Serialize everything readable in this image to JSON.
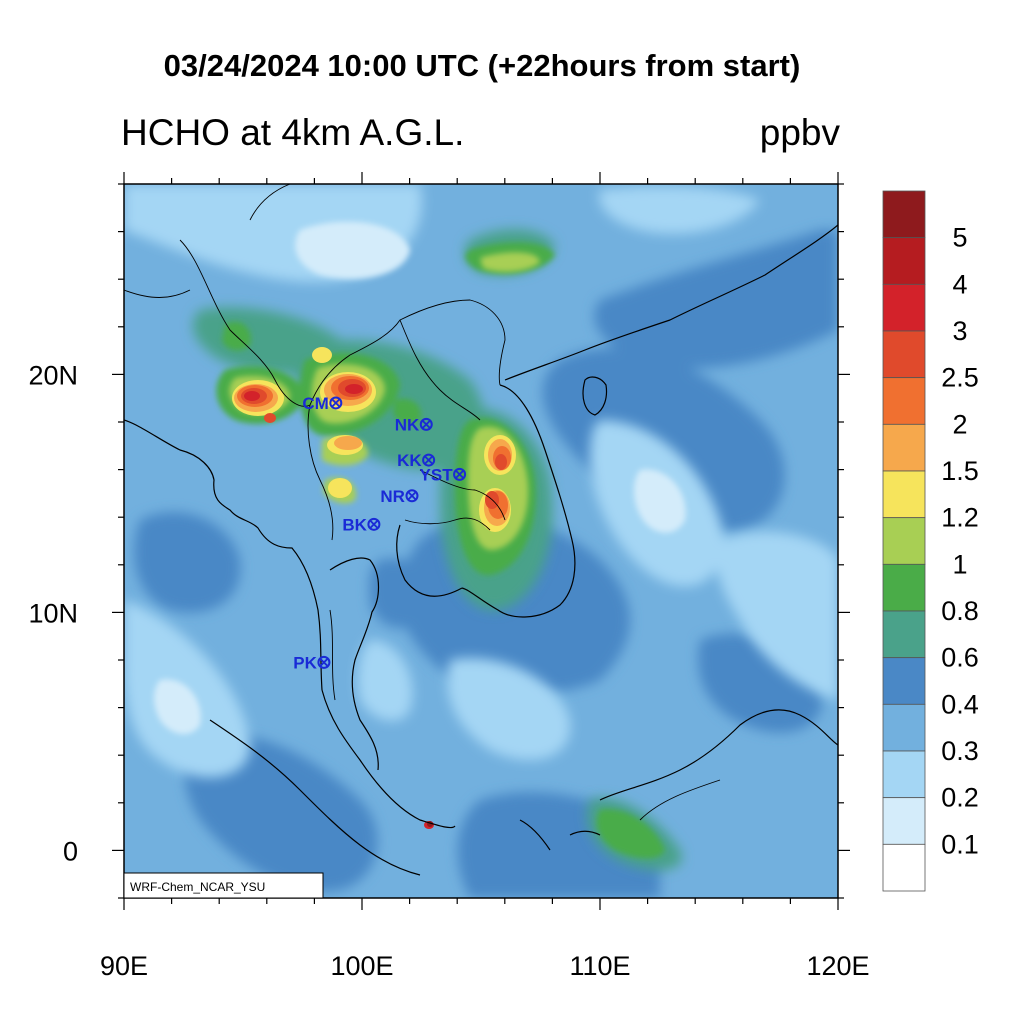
{
  "header": {
    "title": "03/24/2024 10:00 UTC (+22hours from start)",
    "left_label": "HCHO at 4km A.G.L.",
    "units": "ppbv"
  },
  "map": {
    "lon_range": [
      90,
      120
    ],
    "lat_range": [
      -2,
      28
    ],
    "x_ticks": [
      {
        "value": 90,
        "label": "90E"
      },
      {
        "value": 100,
        "label": "100E"
      },
      {
        "value": 110,
        "label": "110E"
      },
      {
        "value": 120,
        "label": "120E"
      }
    ],
    "y_ticks": [
      {
        "value": 20,
        "label": "20N"
      },
      {
        "value": 10,
        "label": "10N"
      },
      {
        "value": 0,
        "label": "0"
      }
    ],
    "credit": "WRF-Chem_NCAR_YSU",
    "stations": [
      {
        "name": "CM",
        "lon": 98.9,
        "lat": 18.8
      },
      {
        "name": "NK",
        "lon": 102.7,
        "lat": 17.9
      },
      {
        "name": "KK",
        "lon": 102.8,
        "lat": 16.4
      },
      {
        "name": "YST",
        "lon": 104.1,
        "lat": 15.8
      },
      {
        "name": "NR",
        "lon": 102.1,
        "lat": 14.9
      },
      {
        "name": "BK",
        "lon": 100.5,
        "lat": 13.7
      },
      {
        "name": "PK",
        "lon": 98.4,
        "lat": 7.9
      }
    ]
  },
  "colorbar": {
    "labels": [
      "5",
      "4",
      "3",
      "2.5",
      "2",
      "1.5",
      "1.2",
      "1",
      "0.8",
      "0.6",
      "0.4",
      "0.3",
      "0.2",
      "0.1"
    ],
    "colors": [
      "#8e1a1d",
      "#b51c20",
      "#d3222a",
      "#e04a2c",
      "#f07030",
      "#f6a84c",
      "#f6e45c",
      "#a8cf54",
      "#4aac48",
      "#4aa28a",
      "#4a88c6",
      "#72b0de",
      "#a4d6f4",
      "#d4ecfa",
      "#ffffff"
    ]
  }
}
